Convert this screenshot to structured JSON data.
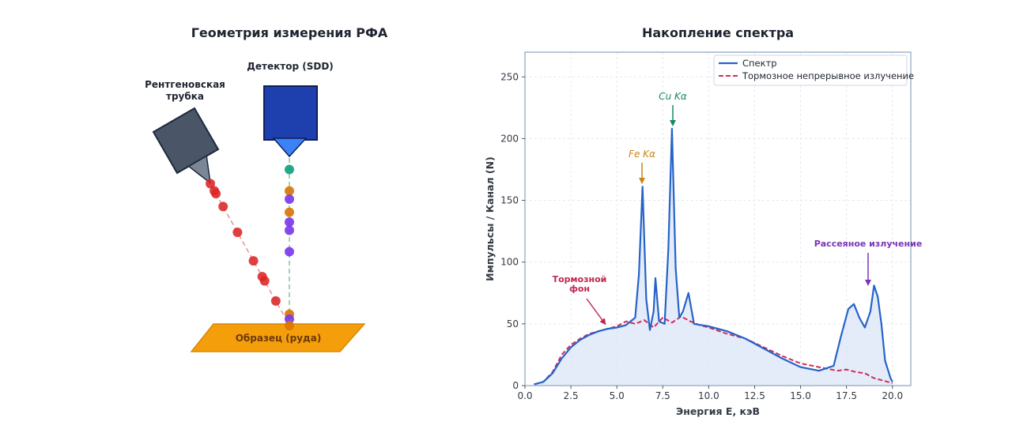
{
  "geometry": {
    "title": "Геометрия измерения РФА",
    "tube_label_line1": "Рентгеновская",
    "tube_label_line2": "трубка",
    "detector_label": "Детектор (SDD)",
    "sample_label": "Образец (руда)",
    "colors": {
      "tube": "#4a5568",
      "detector": "#1e40af",
      "sample": "#f59e0b",
      "incident_photon": "#dc2626",
      "fe_photon": "#d97706",
      "cu_photon": "#10a37f",
      "scatter_photon": "#7c3aed"
    },
    "incident_photons": [
      0.03,
      0.08,
      0.1,
      0.19,
      0.37,
      0.57,
      0.68,
      0.71,
      0.85
    ],
    "emitted_photons": [
      {
        "t": 0.93,
        "type": "cu"
      },
      {
        "t": 0.8,
        "type": "fe"
      },
      {
        "t": 0.75,
        "type": "scatter"
      },
      {
        "t": 0.67,
        "type": "fe"
      },
      {
        "t": 0.61,
        "type": "scatter"
      },
      {
        "t": 0.56,
        "type": "scatter"
      },
      {
        "t": 0.43,
        "type": "scatter"
      },
      {
        "t": 0.05,
        "type": "fe"
      },
      {
        "t": 0.02,
        "type": "scatter"
      },
      {
        "t": -0.02,
        "type": "fe"
      }
    ]
  },
  "chart_data": {
    "type": "line",
    "title": "Накопление спектра",
    "xlabel": "Энергия E, кэВ",
    "ylabel": "Импульсы / Канал (N)",
    "xlim": [
      0,
      21
    ],
    "ylim": [
      0,
      270
    ],
    "x_ticks": [
      "0.0",
      "2.5",
      "5.0",
      "7.5",
      "10.0",
      "12.5",
      "15.0",
      "17.5",
      "20.0"
    ],
    "y_ticks": [
      "0",
      "50",
      "100",
      "150",
      "200",
      "250"
    ],
    "grid": true,
    "legend_position": "top-right",
    "series": [
      {
        "name": "Спектр",
        "color": "#2563c9",
        "style": "solid",
        "x": [
          0.5,
          1.0,
          1.5,
          2.0,
          2.5,
          3.0,
          3.5,
          4.0,
          4.5,
          5.0,
          5.5,
          6.0,
          6.2,
          6.4,
          6.6,
          6.8,
          7.0,
          7.1,
          7.3,
          7.6,
          7.8,
          8.0,
          8.2,
          8.4,
          8.6,
          8.9,
          9.2,
          10.0,
          11.0,
          12.0,
          13.0,
          14.0,
          15.0,
          16.0,
          16.8,
          17.2,
          17.6,
          17.9,
          18.2,
          18.5,
          18.8,
          19.0,
          19.2,
          19.4,
          19.6,
          19.9,
          20.0
        ],
        "y": [
          1,
          3,
          10,
          22,
          31,
          37,
          41,
          44,
          46,
          47,
          49,
          55,
          90,
          161,
          70,
          45,
          60,
          87,
          52,
          50,
          110,
          208,
          95,
          55,
          60,
          75,
          50,
          48,
          44,
          38,
          30,
          22,
          15,
          12,
          16,
          40,
          62,
          66,
          55,
          47,
          60,
          81,
          72,
          50,
          20,
          6,
          3
        ]
      },
      {
        "name": "Тормозное непрерывное излучение",
        "color": "#cf2e5e",
        "style": "dashed",
        "x": [
          0.5,
          1.0,
          1.5,
          2.0,
          2.5,
          3.0,
          3.5,
          4.0,
          4.5,
          5.0,
          5.5,
          6.0,
          6.5,
          7.0,
          7.5,
          8.0,
          8.5,
          9.0,
          9.5,
          10.0,
          11.0,
          12.0,
          13.0,
          14.0,
          15.0,
          16.0,
          17.0,
          17.5,
          18.0,
          18.5,
          19.0,
          19.5,
          20.0
        ],
        "y": [
          1,
          3,
          11,
          25,
          33,
          38,
          42,
          44,
          46,
          48,
          52,
          50,
          53,
          47,
          55,
          51,
          56,
          52,
          49,
          47,
          42,
          38,
          31,
          24,
          18,
          15,
          12,
          13,
          11,
          10,
          6,
          4,
          2
        ]
      }
    ],
    "annotations": [
      {
        "text": "Fe Kα",
        "x": 6.4,
        "y": 161,
        "color": "#c98512"
      },
      {
        "text": "Cu Kα",
        "x": 8.0,
        "y": 208,
        "color": "#1a8a62"
      },
      {
        "text_line1": "Тормозной",
        "text_line2": "фон",
        "x": 4.5,
        "y": 48,
        "color": "#c02650"
      },
      {
        "text": "Рассеяное излучение",
        "x": 18.8,
        "y": 80,
        "color": "#7a35b5"
      }
    ]
  }
}
